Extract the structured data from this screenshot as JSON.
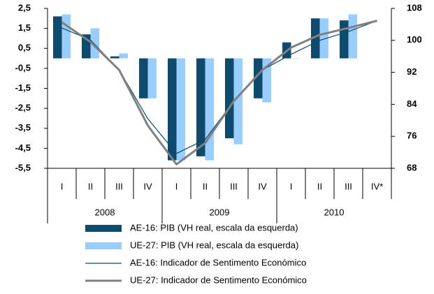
{
  "chart_data": {
    "type": "bar",
    "categories": [
      "I",
      "II",
      "III",
      "IV",
      "I",
      "II",
      "III",
      "IV",
      "I",
      "II",
      "III",
      "IV*"
    ],
    "groups": [
      "2008",
      "2009",
      "2010"
    ],
    "series": [
      {
        "name": "AE-16: PIB (VH real, escala da esquerda)",
        "type": "bar",
        "color": "#0d4a6b",
        "values": [
          2.1,
          1.2,
          0.1,
          -2.0,
          -5.1,
          -4.9,
          -4.0,
          -2.0,
          0.8,
          2.0,
          1.9,
          null
        ]
      },
      {
        "name": "UE-27: PIB (VH real, escala da esquerda)",
        "type": "bar",
        "color": "#99ccff",
        "values": [
          2.2,
          1.5,
          0.25,
          -2.0,
          -5.1,
          -5.1,
          -4.3,
          -2.2,
          0.0,
          2.0,
          2.2,
          null
        ]
      },
      {
        "name": "AE-16: Indicador de Sentimento Económico",
        "type": "line",
        "axis": "y2",
        "color": "#0d4a6b",
        "values": [
          103.1,
          100.1,
          92.6,
          80.4,
          71.7,
          75.2,
          84.8,
          92.6,
          96.5,
          100.0,
          102.2,
          104.9
        ]
      },
      {
        "name": "UE-27: Indicador de Sentimento Económico",
        "type": "line",
        "axis": "y2",
        "color": "#808080",
        "values": [
          104.5,
          99.6,
          92.6,
          78.7,
          69.0,
          74.3,
          84.8,
          92.6,
          98.2,
          101.4,
          103.1,
          104.9
        ]
      }
    ],
    "ylim": [
      -5.5,
      2.5
    ],
    "yticks": [
      {
        "value": 2.5,
        "label": "2,5"
      },
      {
        "value": 1.5,
        "label": "1,5"
      },
      {
        "value": 0.5,
        "label": "0,5"
      },
      {
        "value": -0.5,
        "label": "-0,5"
      },
      {
        "value": -1.5,
        "label": "-1,5"
      },
      {
        "value": -2.5,
        "label": "-2,5"
      },
      {
        "value": -3.5,
        "label": "-3,5"
      },
      {
        "value": -4.5,
        "label": "-4,5"
      },
      {
        "value": -5.5,
        "label": "-5,5"
      }
    ],
    "y2lim": [
      68,
      108
    ],
    "y2ticks": [
      68,
      76,
      84,
      92,
      100,
      108
    ]
  }
}
